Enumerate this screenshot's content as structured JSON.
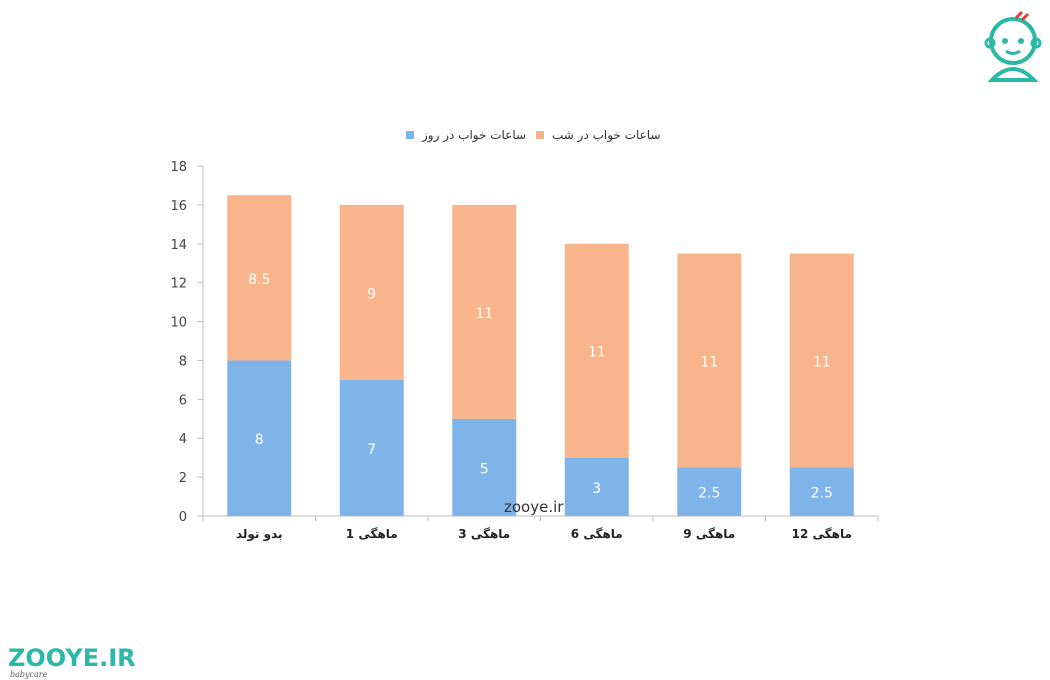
{
  "chart_data": {
    "type": "bar",
    "stacked": true,
    "categories": [
      "بدو تولد",
      "1 ماهگی",
      "3 ماهگی",
      "6 ماهگی",
      "9 ماهگی",
      "12 ماهگی"
    ],
    "series": [
      {
        "name": "ساعات خواب در روز",
        "color": "#7fb4e8",
        "values": [
          8,
          7,
          5,
          3,
          2.5,
          2.5
        ]
      },
      {
        "name": "ساعات خواب در شب",
        "color": "#f8b58b",
        "values": [
          8.5,
          9,
          11,
          11,
          11,
          11
        ]
      }
    ],
    "y_ticks": [
      "0",
      "2",
      "4",
      "6",
      "8",
      "10",
      "12",
      "14",
      "16",
      "18"
    ],
    "ylim": [
      0,
      18
    ],
    "legend_position": "top",
    "grid": false
  },
  "watermark": "zooye.ir",
  "brand": {
    "name": "ZOOYE.IR",
    "tagline": "babycare"
  }
}
